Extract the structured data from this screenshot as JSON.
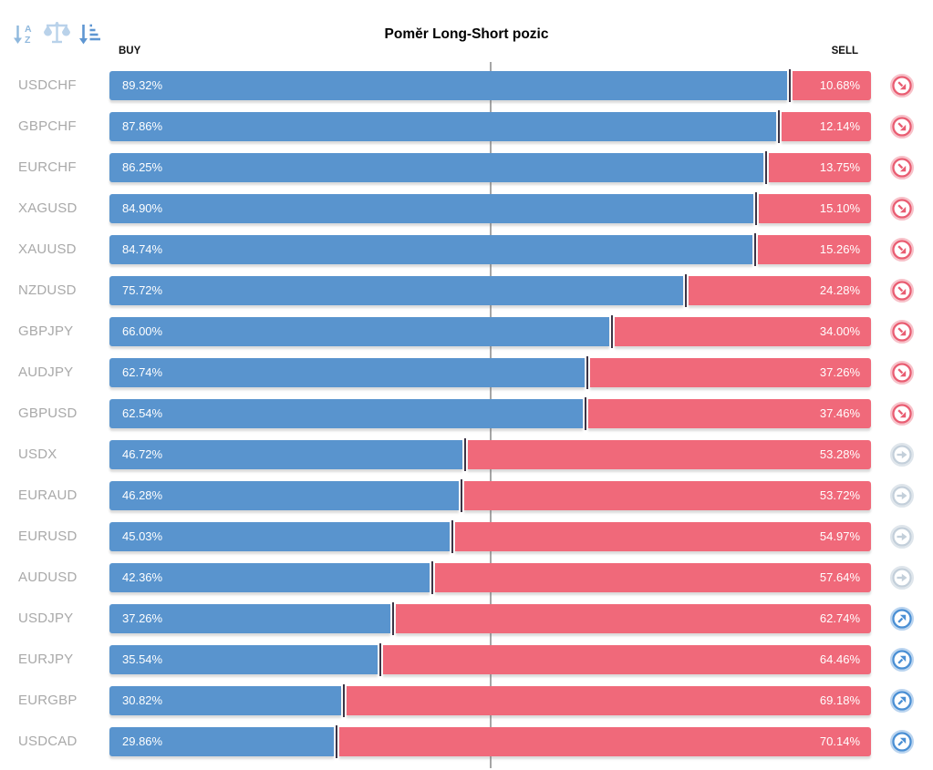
{
  "title": "Pomĕr Long-Short pozic",
  "header": {
    "buy": "BUY",
    "sell": "SELL"
  },
  "toolbar": {
    "icons": [
      "sort-alphabetical-icon",
      "balance-scale-icon",
      "sort-amount-icon"
    ]
  },
  "signal_icons": {
    "sell": "trend-down-icon",
    "neutral": "trend-flat-icon",
    "buy": "trend-up-icon"
  },
  "colors": {
    "buy_bar": "#5994ce",
    "sell_bar": "#f0697a",
    "junction_tick": "#3c3546",
    "center_line": "#a6a6a6",
    "symbol_text": "#a9a9a9",
    "signal_sell": "#e95d72",
    "signal_neutral": "#c3cfda",
    "signal_buy": "#4a8fd4"
  },
  "rows": [
    {
      "symbol": "USDCHF",
      "buy": "89.32%",
      "sell": "10.68%",
      "signal": "sell"
    },
    {
      "symbol": "GBPCHF",
      "buy": "87.86%",
      "sell": "12.14%",
      "signal": "sell"
    },
    {
      "symbol": "EURCHF",
      "buy": "86.25%",
      "sell": "13.75%",
      "signal": "sell"
    },
    {
      "symbol": "XAGUSD",
      "buy": "84.90%",
      "sell": "15.10%",
      "signal": "sell"
    },
    {
      "symbol": "XAUUSD",
      "buy": "84.74%",
      "sell": "15.26%",
      "signal": "sell"
    },
    {
      "symbol": "NZDUSD",
      "buy": "75.72%",
      "sell": "24.28%",
      "signal": "sell"
    },
    {
      "symbol": "GBPJPY",
      "buy": "66.00%",
      "sell": "34.00%",
      "signal": "sell"
    },
    {
      "symbol": "AUDJPY",
      "buy": "62.74%",
      "sell": "37.26%",
      "signal": "sell"
    },
    {
      "symbol": "GBPUSD",
      "buy": "62.54%",
      "sell": "37.46%",
      "signal": "sell"
    },
    {
      "symbol": "USDX",
      "buy": "46.72%",
      "sell": "53.28%",
      "signal": "neutral"
    },
    {
      "symbol": "EURAUD",
      "buy": "46.28%",
      "sell": "53.72%",
      "signal": "neutral"
    },
    {
      "symbol": "EURUSD",
      "buy": "45.03%",
      "sell": "54.97%",
      "signal": "neutral"
    },
    {
      "symbol": "AUDUSD",
      "buy": "42.36%",
      "sell": "57.64%",
      "signal": "neutral"
    },
    {
      "symbol": "USDJPY",
      "buy": "37.26%",
      "sell": "62.74%",
      "signal": "buy"
    },
    {
      "symbol": "EURJPY",
      "buy": "35.54%",
      "sell": "64.46%",
      "signal": "buy"
    },
    {
      "symbol": "EURGBP",
      "buy": "30.82%",
      "sell": "69.18%",
      "signal": "buy"
    },
    {
      "symbol": "USDCAD",
      "buy": "29.86%",
      "sell": "70.14%",
      "signal": "buy"
    }
  ],
  "chart_data": {
    "type": "bar",
    "orientation": "horizontal-stacked",
    "title": "Pomĕr Long-Short pozic",
    "categories": [
      "USDCHF",
      "GBPCHF",
      "EURCHF",
      "XAGUSD",
      "XAUUSD",
      "NZDUSD",
      "GBPJPY",
      "AUDJPY",
      "GBPUSD",
      "USDX",
      "EURAUD",
      "EURUSD",
      "AUDUSD",
      "USDJPY",
      "EURJPY",
      "EURGBP",
      "USDCAD"
    ],
    "series": [
      {
        "name": "BUY",
        "color": "#5994ce",
        "values": [
          89.32,
          87.86,
          86.25,
          84.9,
          84.74,
          75.72,
          66.0,
          62.74,
          62.54,
          46.72,
          46.28,
          45.03,
          42.36,
          37.26,
          35.54,
          30.82,
          29.86
        ]
      },
      {
        "name": "SELL",
        "color": "#f0697a",
        "values": [
          10.68,
          12.14,
          13.75,
          15.1,
          15.26,
          24.28,
          34.0,
          37.26,
          37.46,
          53.28,
          53.72,
          54.97,
          57.64,
          62.74,
          64.46,
          69.18,
          70.14
        ]
      }
    ],
    "xlim": [
      0,
      100
    ],
    "reference_line_pct": 50,
    "grid": false,
    "legend_position": "column headers: BUY top-left, SELL top-right",
    "value_labels": "inside bars, percent with 2 decimals"
  }
}
